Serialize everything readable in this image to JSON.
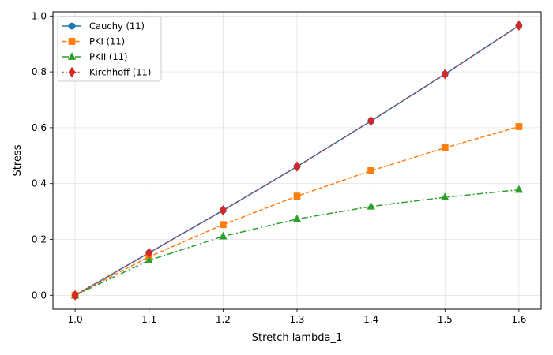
{
  "chart_data": {
    "type": "line",
    "title": "",
    "xlabel": "Stretch lambda_1",
    "ylabel": "Stress",
    "xlim": [
      0.97,
      1.63
    ],
    "ylim": [
      -0.05,
      1.015
    ],
    "xticks": [
      1.0,
      1.1,
      1.2,
      1.3,
      1.4,
      1.5,
      1.6
    ],
    "xtick_labels": [
      "1.0",
      "1.1",
      "1.2",
      "1.3",
      "1.4",
      "1.5",
      "1.6"
    ],
    "yticks": [
      0.0,
      0.2,
      0.4,
      0.6,
      0.8,
      1.0
    ],
    "ytick_labels": [
      "0.0",
      "0.2",
      "0.4",
      "0.6",
      "0.8",
      "1.0"
    ],
    "grid": true,
    "legend_position": "top-left",
    "x": [
      1.0,
      1.1,
      1.2,
      1.3,
      1.4,
      1.5,
      1.6
    ],
    "series": [
      {
        "name": "Cauchy (11)",
        "color": "#1f77b4",
        "linestyle": "solid",
        "marker": "circle",
        "values": [
          0.0,
          0.152,
          0.304,
          0.461,
          0.624,
          0.792,
          0.966
        ]
      },
      {
        "name": "PKI (11)",
        "color": "#ff7f0e",
        "linestyle": "dashed",
        "marker": "square",
        "values": [
          0.0,
          0.138,
          0.253,
          0.355,
          0.446,
          0.528,
          0.604
        ]
      },
      {
        "name": "PKII (11)",
        "color": "#2ca02c",
        "linestyle": "dashdot",
        "marker": "triangle",
        "values": [
          0.0,
          0.125,
          0.211,
          0.273,
          0.318,
          0.351,
          0.378
        ]
      },
      {
        "name": "Kirchhoff (11)",
        "color": "#d62728",
        "linestyle": "dotted",
        "marker": "diamond",
        "values": [
          0.0,
          0.152,
          0.304,
          0.461,
          0.624,
          0.792,
          0.966
        ]
      }
    ]
  }
}
